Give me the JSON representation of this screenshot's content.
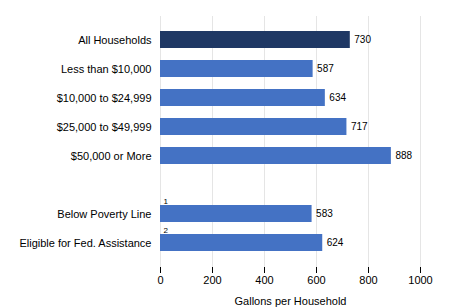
{
  "chart_data": {
    "type": "bar",
    "orientation": "horizontal",
    "categories": [
      "Eligible for Fed. Assistance",
      "Below Poverty Line",
      null,
      "$50,000 or More",
      "$25,000 to $49,999",
      "$10,000 to $24,999",
      "Less than $10,000",
      "All Households"
    ],
    "values": [
      624,
      583,
      null,
      888,
      717,
      634,
      587,
      730
    ],
    "colors": [
      "#4472c4",
      "#4472c4",
      null,
      "#4472c4",
      "#4472c4",
      "#4472c4",
      "#4472c4",
      "#1f3864"
    ],
    "footnotes": [
      "2",
      "1",
      null,
      null,
      null,
      null,
      null,
      null
    ],
    "data_labels": true,
    "xlabel": "Gallons per Household",
    "xlim": [
      0,
      1000
    ],
    "xticks": [
      0,
      200,
      400,
      600,
      800,
      1000
    ],
    "grid": true
  }
}
